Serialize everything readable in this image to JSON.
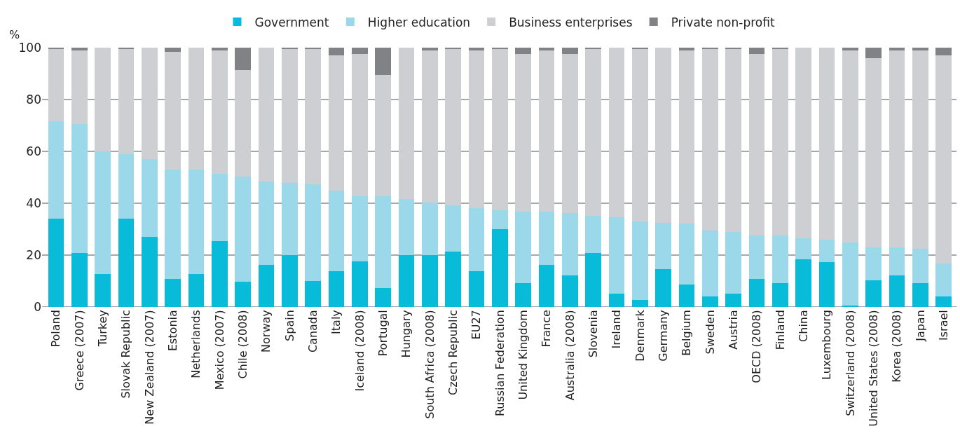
{
  "chart_data": {
    "type": "bar",
    "stacked": true,
    "ylabel": "%",
    "categories": [
      "Poland",
      "Greece (2007)",
      "Turkey",
      "Slovak Republic",
      "New Zealand (2007)",
      "Estonia",
      "Netherlands",
      "Mexico (2007)",
      "Chile (2008)",
      "Norway",
      "Spain",
      "Canada",
      "Italy",
      "Iceland (2008)",
      "Portugal",
      "Hungary",
      "South Africa (2008)",
      "Czech Republic",
      "EU27",
      "Russian Federation",
      "United Kingdom",
      "France",
      "Australia (2008)",
      "Slovenia",
      "Ireland",
      "Denmark",
      "Germany",
      "Belgium",
      "Sweden",
      "Austria",
      "OECD (2008)",
      "Finland",
      "China",
      "Luxembourg",
      "Switzerland (2008)",
      "United States (2008)",
      "Korea (2008)",
      "Japan",
      "Israel"
    ],
    "series": [
      {
        "name": "Government",
        "color": "#07bbd9",
        "values": [
          34.1,
          20.7,
          12.7,
          34.1,
          27.0,
          10.9,
          12.7,
          25.4,
          9.7,
          16.2,
          20.1,
          9.9,
          13.7,
          17.7,
          7.4,
          20.1,
          20.1,
          21.3,
          13.7,
          30.0,
          9.2,
          16.1,
          12.1,
          20.7,
          5.1,
          2.7,
          14.5,
          8.6,
          4.0,
          5.1,
          10.8,
          9.2,
          18.3,
          17.2,
          0.5,
          10.2,
          12.1,
          9.2,
          4.0
        ]
      },
      {
        "name": "Higher education",
        "color": "#9bd8e9",
        "values": [
          37.5,
          49.8,
          47.3,
          24.8,
          30.0,
          42.1,
          40.3,
          26.0,
          40.6,
          32.3,
          27.7,
          37.5,
          31.3,
          24.9,
          35.2,
          21.4,
          20.2,
          17.9,
          24.4,
          7.2,
          27.6,
          20.7,
          24.1,
          14.4,
          29.4,
          30.2,
          17.8,
          23.5,
          25.4,
          23.8,
          16.7,
          18.3,
          8.2,
          8.7,
          24.3,
          12.8,
          10.9,
          13.2,
          12.7
        ]
      },
      {
        "name": "Business enterprises",
        "color": "#cdcfd2",
        "values": [
          28.1,
          28.4,
          40.0,
          40.8,
          43.0,
          45.3,
          47.0,
          47.5,
          41.1,
          51.5,
          51.9,
          52.1,
          52.1,
          55.1,
          46.9,
          58.5,
          58.5,
          60.3,
          60.7,
          62.5,
          60.8,
          62.0,
          61.5,
          64.6,
          65.5,
          66.8,
          67.7,
          66.9,
          70.3,
          70.8,
          70.2,
          72.0,
          73.5,
          74.1,
          74.0,
          72.9,
          75.8,
          76.4,
          80.4
        ]
      },
      {
        "name": "Private non-profit",
        "color": "#808286",
        "values": [
          0.3,
          1.1,
          0,
          0.3,
          0,
          1.7,
          0,
          1.1,
          8.6,
          0,
          0.3,
          0.5,
          2.9,
          2.3,
          10.5,
          0,
          1.2,
          0.5,
          1.2,
          0.3,
          2.4,
          1.2,
          2.3,
          0.3,
          0,
          0.3,
          0,
          1.0,
          0.3,
          0.3,
          2.3,
          0.5,
          0,
          0,
          1.2,
          4.1,
          1.2,
          1.2,
          2.9
        ]
      }
    ],
    "ylim": [
      0,
      100
    ],
    "yticks": [
      0,
      20,
      40,
      60,
      80,
      100
    ],
    "grid": "y",
    "legend": "top"
  }
}
